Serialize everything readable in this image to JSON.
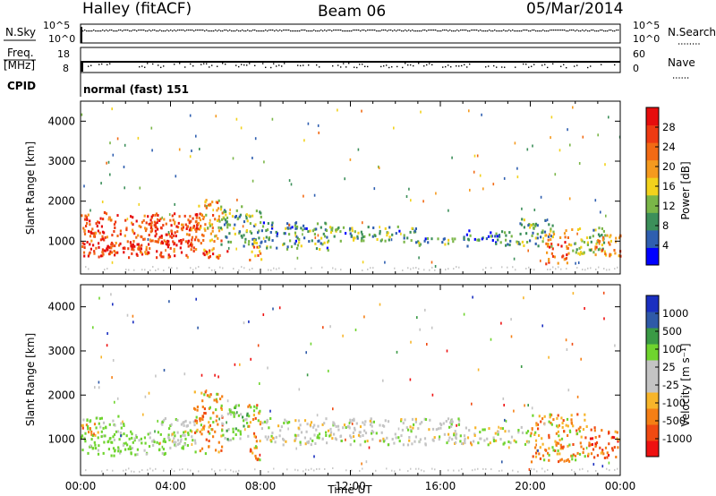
{
  "header": {
    "radar": "Halley (fitACF)",
    "beam": "Beam 06",
    "date": "05/Mar/2014"
  },
  "summary_panel": {
    "nsky_label": "N.Sky",
    "nsky_ticks": [
      "10^5",
      "10^0"
    ],
    "nsearch_label": "N.Search",
    "nsearch_ticks": [
      "10^5",
      "10^0"
    ],
    "freq_label_top": "Freq.",
    "freq_label_unit": "[MHz]",
    "freq_ticks": [
      "18",
      "8"
    ],
    "nave_label": "Nave",
    "nave_ticks": [
      "60",
      "0"
    ],
    "cpid_label": "CPID",
    "cpid_value": "normal (fast) 151"
  },
  "colors": {
    "power_scale": [
      "#0000ff",
      "#2f5fb0",
      "#3c8f5a",
      "#7ab648",
      "#f2d21c",
      "#f59a1e",
      "#f26a14",
      "#ee3a12",
      "#e60d0d"
    ],
    "velocity_scale": [
      "#ee1111",
      "#f04a12",
      "#f57f15",
      "#f7b52a",
      "#c4c4c4",
      "#c4c4c4",
      "#6fd42e",
      "#3a9a45",
      "#2f5aa8",
      "#1a2fc0"
    ]
  },
  "chart_data": [
    {
      "type": "heatmap",
      "name": "power",
      "ylabel": "Slant Range [km]",
      "xlabel": "Time UT",
      "xlim_hours": [
        0,
        24
      ],
      "ylim": [
        180,
        4500
      ],
      "y_ticks": [
        1000,
        2000,
        3000,
        4000
      ],
      "x_ticks": [
        "00:00",
        "04:00",
        "08:00",
        "12:00",
        "16:00",
        "20:00",
        "00:00"
      ],
      "colorbar": {
        "label": "Power [dB]",
        "ticks": [
          "4",
          "8",
          "12",
          "16",
          "20",
          "24",
          "28"
        ],
        "range": [
          0,
          30
        ]
      },
      "regions": [
        {
          "t": [
            0.0,
            5.3
          ],
          "r": [
            620,
            1750
          ],
          "level": 24
        },
        {
          "t": [
            0.5,
            3.0
          ],
          "r": [
            750,
            1000
          ],
          "level": 28
        },
        {
          "t": [
            3.0,
            5.2
          ],
          "r": [
            950,
            1500
          ],
          "level": 26
        },
        {
          "t": [
            5.2,
            6.3
          ],
          "r": [
            600,
            2100
          ],
          "level": 18
        },
        {
          "t": [
            5.4,
            6.5
          ],
          "r": [
            600,
            800
          ],
          "level": 27
        },
        {
          "t": [
            6.2,
            8.0
          ],
          "r": [
            900,
            1900
          ],
          "level": 10
        },
        {
          "t": [
            7.4,
            8.0
          ],
          "r": [
            550,
            900
          ],
          "level": 20
        },
        {
          "t": [
            8.0,
            11.0
          ],
          "r": [
            800,
            1500
          ],
          "level": 8
        },
        {
          "t": [
            11.0,
            15.0
          ],
          "r": [
            1000,
            1400
          ],
          "level": 9
        },
        {
          "t": [
            15.0,
            17.0
          ],
          "r": [
            900,
            1100
          ],
          "level": 8
        },
        {
          "t": [
            17.0,
            19.5
          ],
          "r": [
            900,
            1300
          ],
          "level": 7
        },
        {
          "t": [
            19.5,
            21.0
          ],
          "r": [
            900,
            1600
          ],
          "level": 10
        },
        {
          "t": [
            20.6,
            21.7
          ],
          "r": [
            450,
            1300
          ],
          "level": 22
        },
        {
          "t": [
            21.7,
            23.3
          ],
          "r": [
            700,
            1400
          ],
          "level": 12
        },
        {
          "t": [
            22.8,
            24.0
          ],
          "r": [
            600,
            1200
          ],
          "level": 20
        }
      ]
    },
    {
      "type": "heatmap",
      "name": "velocity",
      "ylabel": "Slant Range [km]",
      "xlabel": "Time UT",
      "xlim_hours": [
        0,
        24
      ],
      "ylim": [
        180,
        4500
      ],
      "y_ticks": [
        1000,
        2000,
        3000,
        4000
      ],
      "x_ticks": [
        "00:00",
        "04:00",
        "08:00",
        "12:00",
        "16:00",
        "20:00",
        "00:00"
      ],
      "colorbar": {
        "label": "Velocity [m s⁻¹]",
        "ticks": [
          "-1000",
          "-500",
          "-100",
          "-25",
          "25",
          "100",
          "500",
          "1000"
        ]
      },
      "regions": [
        {
          "t": [
            0.0,
            2.0
          ],
          "r": [
            650,
            1550
          ],
          "class": "pos_low"
        },
        {
          "t": [
            0.0,
            0.8
          ],
          "r": [
            1100,
            1500
          ],
          "class": "neg_mid"
        },
        {
          "t": [
            2.0,
            4.8
          ],
          "r": [
            650,
            1200
          ],
          "class": "pos_low"
        },
        {
          "t": [
            3.5,
            5.2
          ],
          "r": [
            900,
            1500
          ],
          "class": "zero"
        },
        {
          "t": [
            5.0,
            6.3
          ],
          "r": [
            700,
            2100
          ],
          "class": "neg_mid"
        },
        {
          "t": [
            6.2,
            7.5
          ],
          "r": [
            1000,
            1800
          ],
          "class": "pos_mid"
        },
        {
          "t": [
            7.4,
            8.0
          ],
          "r": [
            550,
            1900
          ],
          "class": "neg_mid"
        },
        {
          "t": [
            8.0,
            17.0
          ],
          "r": [
            900,
            1500
          ],
          "class": "zero"
        },
        {
          "t": [
            17.0,
            20.0
          ],
          "r": [
            900,
            1300
          ],
          "class": "zero"
        },
        {
          "t": [
            20.0,
            22.5
          ],
          "r": [
            500,
            1600
          ],
          "class": "neg_mid"
        },
        {
          "t": [
            22.5,
            24.0
          ],
          "r": [
            600,
            1300
          ],
          "class": "neg_high"
        }
      ]
    }
  ]
}
